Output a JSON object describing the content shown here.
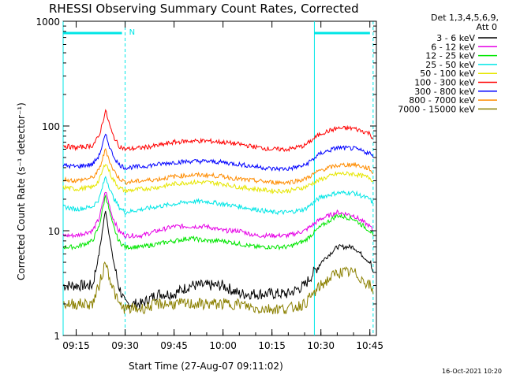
{
  "chart_data": {
    "type": "line",
    "title": "RHESSI Observing Summary Count Rates, Corrected",
    "xlabel": "Start Time (27-Aug-07 09:11:02)",
    "ylabel": "Corrected Count Rate (s⁻¹ detector⁻¹)",
    "yscale": "log",
    "ylim": [
      1,
      1000
    ],
    "xlim": [
      "09:11",
      "10:47"
    ],
    "x_ticks": [
      "09:15",
      "09:30",
      "09:45",
      "10:00",
      "10:15",
      "10:30",
      "10:45"
    ],
    "y_ticks": [
      "1",
      "10",
      "100",
      "1000"
    ],
    "legend_header": [
      "Det 1,3,4,5,6,9,",
      "Att 0"
    ],
    "legend_position": "right",
    "annotation_N": "N",
    "night_intervals": [
      [
        "09:11",
        "09:30"
      ],
      [
        "10:28",
        "10:46"
      ]
    ],
    "x_times": [
      "09:11",
      "09:15",
      "09:20",
      "09:22",
      "09:24",
      "09:26",
      "09:28",
      "09:30",
      "09:35",
      "09:40",
      "09:45",
      "09:50",
      "09:55",
      "10:00",
      "10:05",
      "10:10",
      "10:15",
      "10:20",
      "10:25",
      "10:30",
      "10:35",
      "10:40",
      "10:45",
      "10:46"
    ],
    "series": [
      {
        "name": "3 - 6 keV",
        "color": "#000000",
        "values": [
          3,
          3,
          3,
          6,
          16,
          6,
          3,
          2,
          2,
          2.5,
          2.5,
          3,
          3,
          3,
          2.5,
          2.5,
          2.5,
          2.5,
          3,
          5,
          7,
          7,
          5,
          4
        ]
      },
      {
        "name": "6 - 12 keV",
        "color": "#e600e6",
        "values": [
          9,
          9,
          10,
          13,
          24,
          14,
          10,
          9,
          9,
          10,
          11,
          11,
          11,
          10,
          10,
          9,
          9,
          9,
          10,
          13,
          15,
          14,
          11,
          10
        ]
      },
      {
        "name": "12 - 25 keV",
        "color": "#00e600",
        "values": [
          7,
          7,
          8,
          11,
          22,
          12,
          8,
          7,
          7,
          7.5,
          8,
          8.5,
          8,
          8,
          7.5,
          7,
          7,
          7,
          8,
          11,
          14,
          13,
          10,
          9
        ]
      },
      {
        "name": "25 - 50 keV",
        "color": "#00e6e6",
        "values": [
          17,
          16,
          17,
          20,
          33,
          22,
          17,
          15,
          16,
          17,
          18,
          19,
          19,
          18,
          17,
          16,
          15,
          15,
          16,
          21,
          23,
          23,
          20,
          18
        ]
      },
      {
        "name": "50 - 100 keV",
        "color": "#e6e600",
        "values": [
          26,
          25,
          26,
          30,
          45,
          32,
          26,
          24,
          25,
          26,
          28,
          29,
          29,
          28,
          26,
          25,
          24,
          24,
          26,
          31,
          35,
          35,
          32,
          30
        ]
      },
      {
        "name": "100 - 300 keV",
        "color": "#ff0000",
        "values": [
          65,
          62,
          65,
          80,
          140,
          85,
          65,
          60,
          62,
          65,
          70,
          72,
          72,
          70,
          67,
          63,
          60,
          60,
          65,
          85,
          95,
          95,
          85,
          75
        ]
      },
      {
        "name": "300 - 800 keV",
        "color": "#0000ff",
        "values": [
          42,
          41,
          43,
          52,
          82,
          55,
          43,
          40,
          41,
          43,
          45,
          46,
          46,
          45,
          43,
          41,
          39,
          39,
          42,
          55,
          62,
          61,
          55,
          50
        ]
      },
      {
        "name": "800 - 7000 keV",
        "color": "#ff8c00",
        "values": [
          31,
          30,
          32,
          38,
          60,
          40,
          32,
          29,
          30,
          31,
          33,
          34,
          34,
          33,
          31,
          30,
          29,
          29,
          31,
          38,
          42,
          43,
          39,
          35
        ]
      },
      {
        "name": "7000 - 15000 keV",
        "color": "#8b8000",
        "values": [
          2,
          2,
          2,
          3,
          5,
          3,
          2,
          1.8,
          1.8,
          2,
          2,
          2,
          2,
          2,
          2,
          1.8,
          1.8,
          1.8,
          2,
          3,
          4,
          4,
          3,
          2.5
        ]
      }
    ]
  },
  "footer": {
    "date_stamp": "16-Oct-2021 10:20"
  }
}
